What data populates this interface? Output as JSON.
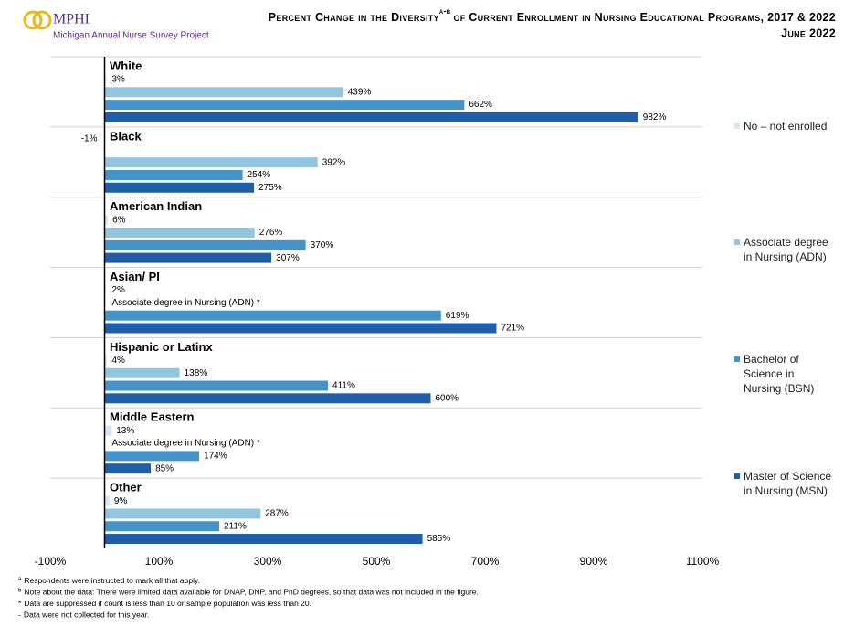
{
  "logo": {
    "name": "MPHI",
    "project": "Michigan Annual Nurse Survey Project"
  },
  "chart_data": {
    "type": "hbar",
    "title": "Percent Change in the Diversity",
    "title_superscript": "a-b",
    "title_continued": "of Current Enrollment in Nursing Educational Programs, 2017 & 2022",
    "subtitle": "June 2022",
    "categories": [
      "White",
      "Black",
      "American Indian",
      "Asian/ PI",
      "Hispanic or Latinx",
      "Middle Eastern",
      "Other"
    ],
    "series": [
      {
        "name": "No – not enrolled",
        "color": "#d3e8f3",
        "values": [
          3,
          -1,
          6,
          2,
          4,
          13,
          9
        ],
        "value_labels": [
          "3%",
          "-1%",
          "6%",
          "2%",
          "4%",
          "13%",
          "9%"
        ]
      },
      {
        "name": "Associate degree in Nursing (ADN)",
        "color": "#92c6df",
        "values": [
          439,
          392,
          276,
          null,
          138,
          null,
          287
        ],
        "value_labels": [
          "439%",
          "392%",
          "276%",
          "Associate degree in Nursing (ADN) *",
          "138%",
          "Associate degree in Nursing (ADN) *",
          "287%"
        ]
      },
      {
        "name": "Bachelor of Science in Nursing (BSN)",
        "color": "#4594c9",
        "values": [
          662,
          254,
          370,
          619,
          411,
          174,
          211
        ],
        "value_labels": [
          "662%",
          "254%",
          "370%",
          "619%",
          "411%",
          "174%",
          "211%"
        ]
      },
      {
        "name": "Master of Science in Nursing (MSN)",
        "color": "#1f5ea8",
        "values": [
          982,
          275,
          307,
          721,
          600,
          85,
          585
        ],
        "value_labels": [
          "982%",
          "275%",
          "307%",
          "721%",
          "600%",
          "85%",
          "585%"
        ]
      }
    ],
    "xlim": [
      -100,
      1100
    ],
    "xticks": [
      {
        "value": -100,
        "label": "-100%"
      },
      {
        "value": 100,
        "label": "100%"
      },
      {
        "value": 300,
        "label": "300%"
      },
      {
        "value": 500,
        "label": "500%"
      },
      {
        "value": 700,
        "label": "700%"
      },
      {
        "value": 900,
        "label": "900%"
      },
      {
        "value": 1100,
        "label": "1100%"
      }
    ],
    "legend": "right"
  },
  "footnotes": [
    {
      "marker": "a",
      "text": "Respondents were instructed to mark all that apply."
    },
    {
      "marker": "b",
      "text": "Note about the data: There were limited data available for DNAP, DNP, and PhD degrees, so that data was not included in the figure."
    },
    {
      "marker": "*",
      "text": "Data are suppressed if count is less than 10 or sample population was less than 20."
    },
    {
      "marker": "-",
      "text": "Data were not collected for this year."
    }
  ]
}
